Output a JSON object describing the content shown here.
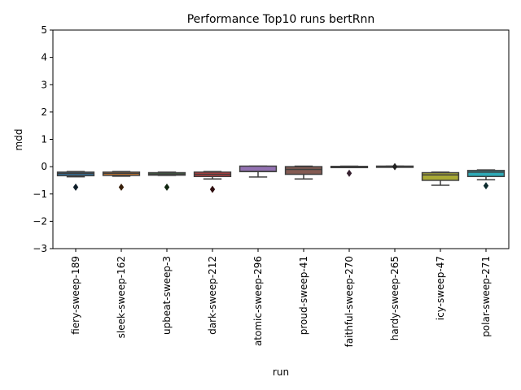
{
  "chart_data": {
    "type": "box",
    "title": "Performance Top10 runs bertRnn",
    "xlabel": "run",
    "ylabel": "mdd",
    "ylim": [
      -3,
      5
    ],
    "yticks": [
      -3,
      -2,
      -1,
      0,
      1,
      2,
      3,
      4,
      5
    ],
    "grid": false,
    "categories": [
      "fiery-sweep-189",
      "sleek-sweep-162",
      "upbeat-sweep-3",
      "dark-sweep-212",
      "atomic-sweep-296",
      "proud-sweep-41",
      "faithful-sweep-270",
      "hardy-sweep-265",
      "icy-sweep-47",
      "polar-sweep-271"
    ],
    "boxes": [
      {
        "min": -0.37,
        "q1": -0.33,
        "median": -0.25,
        "q3": -0.2,
        "max": -0.18,
        "outliers": [
          -0.75
        ],
        "color": "#3274a1"
      },
      {
        "min": -0.35,
        "q1": -0.32,
        "median": -0.25,
        "q3": -0.2,
        "max": -0.18,
        "outliers": [
          -0.75
        ],
        "color": "#e1812c"
      },
      {
        "min": -0.32,
        "q1": -0.31,
        "median": -0.27,
        "q3": -0.22,
        "max": -0.2,
        "outliers": [
          -0.75
        ],
        "color": "#3a923a"
      },
      {
        "min": -0.45,
        "q1": -0.36,
        "median": -0.28,
        "q3": -0.2,
        "max": -0.18,
        "outliers": [
          -0.83
        ],
        "color": "#c03d3e"
      },
      {
        "min": -0.38,
        "q1": -0.18,
        "median": -0.17,
        "q3": 0.02,
        "max": 0.02,
        "outliers": [],
        "color": "#9372b2"
      },
      {
        "min": -0.45,
        "q1": -0.28,
        "median": -0.1,
        "q3": 0.0,
        "max": 0.02,
        "outliers": [],
        "color": "#845b53"
      },
      {
        "min": -0.02,
        "q1": -0.02,
        "median": 0.0,
        "q3": 0.01,
        "max": 0.02,
        "outliers": [
          -0.24
        ],
        "color": "#d684bd"
      },
      {
        "min": 0.0,
        "q1": 0.0,
        "median": 0.01,
        "q3": 0.02,
        "max": 0.02,
        "outliers": [
          0.0
        ],
        "color": "#7f7f7f"
      },
      {
        "min": -0.68,
        "q1": -0.5,
        "median": -0.3,
        "q3": -0.22,
        "max": -0.2,
        "outliers": [],
        "color": "#a9aa35"
      },
      {
        "min": -0.48,
        "q1": -0.36,
        "median": -0.2,
        "q3": -0.14,
        "max": -0.12,
        "outliers": [
          -0.7
        ],
        "color": "#2eabb8"
      }
    ]
  }
}
